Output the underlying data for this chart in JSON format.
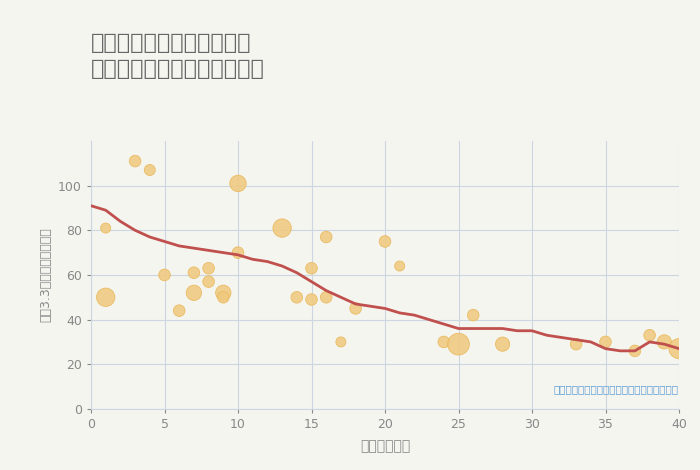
{
  "title": "岐阜県郡上市大和町徳永の\n築年数別中古マンション価格",
  "xlabel": "築年数（年）",
  "ylabel": "坪（3.3㎡）単価（万円）",
  "annotation": "円の大きさは、取引のあった物件面積を示す",
  "scatter_x": [
    1,
    1,
    3,
    4,
    5,
    6,
    7,
    7,
    8,
    8,
    9,
    9,
    10,
    10,
    13,
    14,
    15,
    15,
    16,
    16,
    17,
    18,
    20,
    21,
    24,
    25,
    26,
    28,
    33,
    35,
    37,
    38,
    39,
    40
  ],
  "scatter_y": [
    81,
    50,
    111,
    107,
    60,
    44,
    61,
    52,
    63,
    57,
    52,
    50,
    101,
    70,
    81,
    50,
    49,
    63,
    50,
    77,
    30,
    45,
    75,
    64,
    30,
    29,
    42,
    29,
    29,
    30,
    26,
    33,
    30,
    27
  ],
  "scatter_size": [
    150,
    500,
    200,
    180,
    200,
    200,
    200,
    350,
    200,
    200,
    350,
    200,
    400,
    200,
    500,
    200,
    200,
    200,
    200,
    200,
    150,
    200,
    200,
    150,
    200,
    700,
    200,
    300,
    200,
    200,
    200,
    200,
    300,
    600
  ],
  "line_x": [
    0,
    1,
    2,
    3,
    4,
    5,
    6,
    7,
    8,
    9,
    10,
    11,
    12,
    13,
    14,
    15,
    16,
    17,
    18,
    19,
    20,
    21,
    22,
    23,
    24,
    25,
    26,
    27,
    28,
    29,
    30,
    31,
    32,
    33,
    34,
    35,
    36,
    37,
    38,
    39,
    40
  ],
  "line_y": [
    91,
    89,
    84,
    80,
    77,
    75,
    73,
    72,
    71,
    70,
    69,
    67,
    66,
    64,
    61,
    57,
    53,
    50,
    47,
    46,
    45,
    43,
    42,
    40,
    38,
    36,
    36,
    36,
    36,
    35,
    35,
    33,
    32,
    31,
    30,
    27,
    26,
    26,
    30,
    29,
    27
  ],
  "scatter_color": "#f0c97f",
  "scatter_edgecolor": "#e8b85a",
  "line_color": "#c0504d",
  "background_color": "#f5f5f0",
  "grid_color": "#ccd6e0",
  "title_color": "#666666",
  "axis_color": "#888888",
  "annotation_color": "#5b9bd5",
  "xlim": [
    0,
    40
  ],
  "ylim": [
    0,
    120
  ],
  "xticks": [
    0,
    5,
    10,
    15,
    20,
    25,
    30,
    35,
    40
  ],
  "yticks": [
    0,
    20,
    40,
    60,
    80,
    100
  ]
}
